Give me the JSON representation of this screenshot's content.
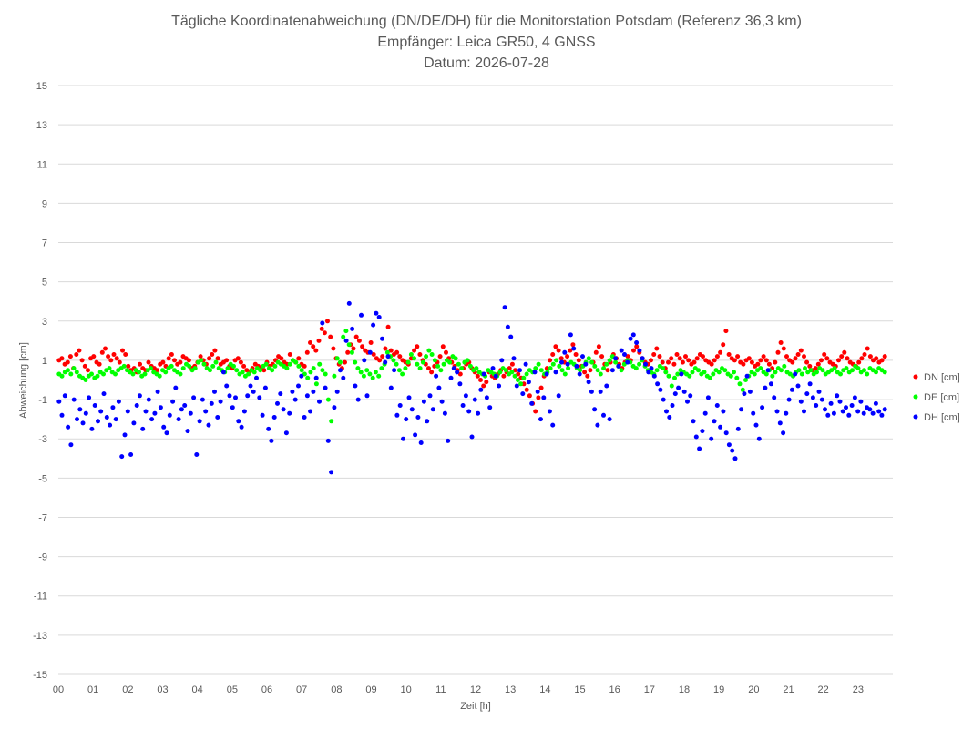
{
  "chart_data": {
    "type": "scatter",
    "title": [
      "Tägliche Koordinatenabweichung (DN/DE/DH) für die Monitorstation Potsdam (Referenz 36,3 km)",
      "Empfänger: Leica GR50, 4 GNSS",
      "Datum: 2026-07-28"
    ],
    "xlabel": "Zeit [h]",
    "ylabel": "Abweichung [cm]",
    "xlim": [
      0,
      24
    ],
    "ylim": [
      -15,
      15
    ],
    "x_ticks": [
      "00",
      "01",
      "02",
      "03",
      "04",
      "05",
      "06",
      "07",
      "08",
      "09",
      "10",
      "11",
      "12",
      "13",
      "14",
      "15",
      "16",
      "17",
      "18",
      "19",
      "20",
      "21",
      "22",
      "23"
    ],
    "y_ticks": [
      15,
      13,
      11,
      9,
      7,
      5,
      3,
      1,
      -1,
      -3,
      -5,
      -7,
      -9,
      -11,
      -13,
      -15
    ],
    "grid": "horizontal",
    "legend_position": "right",
    "sample_interval_h": 0.0333,
    "series": [
      {
        "name": "DN [cm]",
        "color": "#ff0000",
        "values": [
          1.0,
          1.1,
          0.8,
          0.9,
          1.2,
          0.6,
          1.3,
          1.5,
          1.0,
          0.7,
          0.5,
          1.1,
          1.2,
          0.9,
          0.8,
          1.4,
          1.6,
          1.2,
          1.0,
          1.3,
          1.1,
          0.9,
          1.5,
          1.3,
          0.7,
          0.5,
          0.6,
          0.4,
          0.8,
          0.6,
          0.5,
          0.9,
          0.7,
          0.6,
          0.5,
          0.8,
          0.9,
          0.7,
          1.1,
          1.3,
          1.0,
          0.8,
          0.9,
          1.2,
          1.1,
          1.0,
          0.6,
          0.7,
          0.9,
          1.2,
          1.0,
          0.8,
          1.1,
          1.3,
          1.5,
          1.1,
          0.8,
          0.9,
          1.0,
          0.7,
          0.6,
          1.0,
          1.1,
          0.9,
          0.7,
          0.5,
          0.4,
          0.6,
          0.8,
          0.7,
          0.6,
          0.5,
          0.9,
          0.7,
          0.8,
          1.0,
          1.2,
          1.1,
          0.9,
          0.8,
          1.3,
          1.0,
          0.9,
          1.1,
          0.8,
          0.7,
          1.4,
          1.9,
          1.7,
          1.5,
          2.0,
          2.6,
          2.4,
          3.0,
          2.2,
          1.6,
          1.1,
          0.8,
          0.6,
          0.9,
          1.4,
          1.8,
          1.6,
          2.2,
          2.0,
          1.7,
          1.5,
          1.4,
          1.9,
          1.3,
          1.1,
          1.0,
          1.2,
          1.6,
          2.7,
          1.5,
          1.3,
          1.4,
          1.2,
          1.0,
          0.9,
          0.8,
          1.1,
          1.5,
          1.7,
          1.3,
          1.0,
          0.8,
          0.6,
          0.4,
          0.7,
          0.9,
          1.2,
          1.7,
          1.4,
          1.1,
          0.9,
          0.7,
          0.5,
          0.3,
          0.6,
          0.8,
          0.9,
          0.6,
          0.4,
          0.2,
          0.0,
          -0.3,
          -0.1,
          0.4,
          0.2,
          0.1,
          0.3,
          0.5,
          0.2,
          0.4,
          0.6,
          0.8,
          0.5,
          0.3,
          0.1,
          -0.2,
          -0.5,
          -0.8,
          -1.2,
          -1.6,
          -0.9,
          -0.4,
          0.2,
          0.6,
          1.0,
          1.3,
          1.7,
          1.5,
          1.1,
          0.9,
          1.2,
          1.5,
          1.8,
          1.3,
          1.0,
          0.7,
          0.4,
          0.2,
          0.5,
          0.9,
          1.4,
          1.7,
          1.2,
          0.8,
          0.5,
          0.9,
          1.3,
          1.1,
          0.8,
          0.6,
          0.9,
          1.2,
          1.0,
          1.5,
          1.7,
          1.4,
          1.1,
          0.9,
          0.8,
          1.0,
          1.3,
          1.6,
          1.2,
          0.9,
          0.6,
          0.9,
          1.1,
          0.8,
          1.3,
          1.1,
          0.9,
          1.2,
          1.0,
          0.8,
          0.9,
          1.1,
          1.3,
          1.2,
          1.0,
          0.9,
          0.8,
          1.0,
          1.2,
          1.4,
          1.8,
          2.5,
          1.3,
          1.1,
          1.0,
          1.2,
          0.9,
          0.8,
          1.0,
          1.1,
          0.9,
          0.7,
          0.8,
          1.0,
          1.2,
          1.0,
          0.8,
          0.6,
          0.9,
          1.4,
          1.9,
          1.6,
          1.2,
          1.0,
          0.9,
          1.1,
          1.3,
          1.5,
          1.2,
          0.9,
          0.7,
          0.5,
          0.6,
          0.8,
          1.0,
          1.3,
          1.1,
          0.9,
          0.8,
          0.7,
          1.0,
          1.2,
          1.4,
          1.1,
          0.9,
          0.8,
          0.7,
          0.9,
          1.1,
          1.3,
          1.6,
          1.2,
          1.0,
          1.1,
          0.9,
          1.0,
          1.2
        ]
      },
      {
        "name": "DE [cm]",
        "color": "#00ff00",
        "values": [
          0.3,
          0.2,
          0.4,
          0.5,
          0.3,
          0.6,
          0.4,
          0.2,
          0.1,
          0.0,
          0.2,
          0.3,
          0.1,
          0.2,
          0.4,
          0.3,
          0.5,
          0.6,
          0.4,
          0.3,
          0.5,
          0.6,
          0.7,
          0.5,
          0.4,
          0.3,
          0.5,
          0.4,
          0.2,
          0.3,
          0.5,
          0.6,
          0.4,
          0.3,
          0.2,
          0.5,
          0.4,
          0.6,
          0.7,
          0.5,
          0.4,
          0.3,
          0.6,
          0.8,
          0.7,
          0.5,
          0.6,
          0.9,
          1.0,
          0.8,
          0.6,
          0.5,
          0.7,
          0.9,
          0.6,
          0.5,
          0.4,
          0.6,
          0.8,
          0.7,
          0.5,
          0.3,
          0.4,
          0.2,
          0.3,
          0.5,
          0.4,
          0.6,
          0.5,
          0.7,
          0.8,
          0.6,
          0.5,
          0.7,
          0.9,
          0.8,
          0.7,
          0.6,
          0.8,
          1.0,
          0.9,
          0.7,
          0.5,
          0.3,
          0.1,
          0.4,
          0.6,
          -0.2,
          0.8,
          0.5,
          0.3,
          -1.0,
          -2.1,
          0.2,
          1.1,
          0.9,
          2.2,
          2.5,
          1.8,
          1.4,
          0.9,
          0.6,
          0.4,
          0.2,
          0.5,
          0.3,
          0.1,
          0.4,
          0.2,
          0.6,
          0.8,
          1.4,
          1.2,
          1.0,
          0.8,
          0.5,
          0.3,
          0.6,
          0.9,
          1.3,
          1.1,
          0.8,
          0.6,
          0.9,
          1.2,
          1.5,
          1.3,
          1.0,
          0.7,
          0.5,
          0.8,
          1.0,
          0.9,
          1.2,
          1.1,
          0.8,
          0.6,
          0.9,
          1.0,
          0.7,
          0.5,
          0.6,
          0.4,
          0.3,
          0.2,
          0.5,
          0.4,
          0.3,
          0.2,
          0.4,
          0.6,
          0.5,
          0.3,
          0.4,
          0.2,
          0.0,
          -0.2,
          0.1,
          0.3,
          0.5,
          0.4,
          0.6,
          0.8,
          0.5,
          0.3,
          0.4,
          0.6,
          0.8,
          1.0,
          0.7,
          0.5,
          0.3,
          0.6,
          0.9,
          0.8,
          0.6,
          0.5,
          0.7,
          0.9,
          1.1,
          0.9,
          0.7,
          0.5,
          0.3,
          0.6,
          0.8,
          1.0,
          1.2,
          0.9,
          0.7,
          0.5,
          0.8,
          1.0,
          0.9,
          0.7,
          0.6,
          0.8,
          1.0,
          0.7,
          0.5,
          0.4,
          0.3,
          0.5,
          0.7,
          0.6,
          0.4,
          0.2,
          -0.3,
          0.1,
          0.3,
          0.5,
          0.4,
          0.3,
          0.2,
          0.4,
          0.6,
          0.5,
          0.3,
          0.4,
          0.2,
          0.1,
          0.3,
          0.5,
          0.4,
          0.6,
          0.5,
          0.3,
          0.2,
          0.4,
          0.1,
          -0.2,
          -0.5,
          0.0,
          0.2,
          0.4,
          0.3,
          0.5,
          0.6,
          0.4,
          0.3,
          0.5,
          0.2,
          0.4,
          0.6,
          0.5,
          0.7,
          0.4,
          0.3,
          0.2,
          0.4,
          0.5,
          0.3,
          0.6,
          0.4,
          0.5,
          0.3,
          0.4,
          0.6,
          0.5,
          0.3,
          0.4,
          0.5,
          0.6,
          0.4,
          0.3,
          0.5,
          0.6,
          0.4,
          0.5,
          0.7,
          0.6,
          0.4,
          0.5,
          0.3,
          0.6,
          0.5,
          0.4,
          0.6,
          0.5,
          0.4
        ]
      },
      {
        "name": "DH [cm]",
        "color": "#0000ff",
        "values": [
          -1.1,
          -1.8,
          -0.8,
          -2.4,
          -3.3,
          -1.0,
          -2.0,
          -1.5,
          -2.2,
          -1.7,
          -0.9,
          -2.5,
          -1.3,
          -2.1,
          -1.6,
          -0.7,
          -1.9,
          -2.3,
          -1.4,
          -2.0,
          -1.1,
          -3.9,
          -2.8,
          -1.6,
          -3.8,
          -2.2,
          -1.3,
          -0.8,
          -2.5,
          -1.6,
          -1.0,
          -2.0,
          -1.7,
          -0.6,
          -1.4,
          -2.4,
          -2.7,
          -1.8,
          -1.1,
          -0.4,
          -2.0,
          -1.5,
          -1.3,
          -2.6,
          -1.7,
          -0.9,
          -3.8,
          -2.1,
          -1.0,
          -1.6,
          -2.3,
          -1.2,
          -0.6,
          -1.9,
          -1.1,
          0.4,
          -0.3,
          -0.8,
          -1.4,
          -0.9,
          -2.1,
          -2.4,
          -1.6,
          -0.8,
          -0.3,
          -0.6,
          0.1,
          -0.9,
          -1.8,
          -0.4,
          -2.5,
          -3.1,
          -1.9,
          -1.2,
          -0.7,
          -1.5,
          -2.7,
          -1.7,
          -0.6,
          -1.0,
          -0.3,
          0.2,
          -1.9,
          -0.8,
          -1.6,
          -0.6,
          0.1,
          -1.1,
          2.9,
          -0.4,
          -3.1,
          -4.7,
          -1.4,
          -0.6,
          0.5,
          0.1,
          2.0,
          3.9,
          2.6,
          -0.3,
          -1.0,
          3.3,
          1.0,
          -0.8,
          1.4,
          2.8,
          3.4,
          3.2,
          2.1,
          0.9,
          1.2,
          -0.4,
          0.5,
          -1.8,
          -1.3,
          -3.0,
          -2.0,
          -0.9,
          -1.5,
          -2.8,
          -1.9,
          -3.2,
          -1.1,
          -2.1,
          -0.8,
          -1.5,
          0.2,
          -0.4,
          -1.1,
          -1.7,
          -3.1,
          0.1,
          0.6,
          0.4,
          -0.2,
          -1.3,
          -0.8,
          -1.6,
          -2.9,
          -1.0,
          -1.7,
          -0.5,
          0.3,
          -0.9,
          -1.4,
          0.6,
          0.2,
          -0.3,
          1.0,
          3.7,
          2.7,
          2.2,
          1.1,
          -0.3,
          0.5,
          -0.7,
          0.8,
          -0.1,
          -1.2,
          0.4,
          -0.6,
          -2.0,
          -0.9,
          0.3,
          -1.6,
          -2.3,
          0.4,
          -0.8,
          0.9,
          1.4,
          0.8,
          2.3,
          1.6,
          0.7,
          0.3,
          1.2,
          0.8,
          -0.1,
          -0.6,
          -1.5,
          -2.3,
          -0.6,
          -1.8,
          -0.3,
          -2.0,
          0.5,
          1.1,
          0.7,
          1.5,
          1.3,
          0.9,
          2.1,
          2.3,
          1.9,
          1.5,
          1.1,
          0.8,
          0.4,
          0.6,
          0.2,
          -0.2,
          -0.5,
          -1.0,
          -1.6,
          -1.9,
          -1.3,
          -0.7,
          -0.4,
          0.3,
          -0.6,
          -1.1,
          -0.8,
          -2.1,
          -2.9,
          -3.5,
          -2.6,
          -1.7,
          -0.9,
          -3.0,
          -2.1,
          -1.3,
          -2.4,
          -1.6,
          -2.7,
          -3.3,
          -3.6,
          -4.0,
          -2.5,
          -1.5,
          -0.7,
          0.2,
          -0.6,
          -1.7,
          -2.3,
          -3.0,
          -1.4,
          -0.4,
          0.5,
          -0.2,
          -0.9,
          -1.6,
          -2.2,
          -2.7,
          -1.7,
          -1.0,
          -0.5,
          0.3,
          -0.3,
          -1.1,
          -1.6,
          -0.7,
          -0.2,
          -0.9,
          -1.3,
          -0.6,
          -1.0,
          -1.5,
          -1.8,
          -1.2,
          -1.7,
          -0.8,
          -1.1,
          -1.6,
          -1.4,
          -1.8,
          -1.3,
          -0.9,
          -1.6,
          -1.1,
          -1.7,
          -1.4,
          -1.5,
          -1.7,
          -1.2,
          -1.6,
          -1.8,
          -1.5
        ]
      }
    ]
  }
}
